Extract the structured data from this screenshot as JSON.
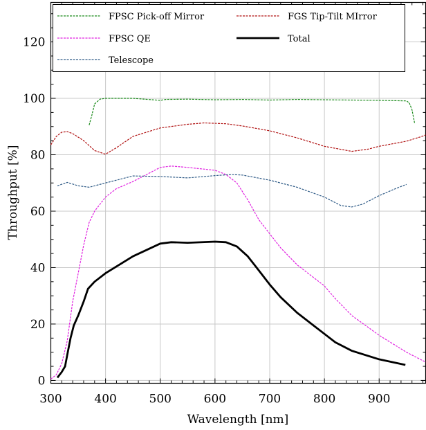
{
  "chart_data": {
    "type": "line",
    "xlabel": "Wavelength [nm]",
    "ylabel": "Throughput [%]",
    "xlim": [
      300,
      985
    ],
    "ylim": [
      -1,
      134
    ],
    "grid": true,
    "legend_placement": "top",
    "xticks": [
      300,
      400,
      500,
      600,
      700,
      800,
      900
    ],
    "yticks": [
      0,
      20,
      40,
      60,
      80,
      100,
      120
    ],
    "series": [
      {
        "name": "FPSC Pick-off Mirror",
        "color": "#1a8a1a",
        "style": "dashed",
        "points": [
          [
            370,
            90.5
          ],
          [
            375,
            94
          ],
          [
            380,
            98
          ],
          [
            390,
            99.7
          ],
          [
            400,
            100
          ],
          [
            450,
            100
          ],
          [
            500,
            99.3
          ],
          [
            510,
            99.6
          ],
          [
            550,
            99.7
          ],
          [
            600,
            99.5
          ],
          [
            650,
            99.6
          ],
          [
            700,
            99.4
          ],
          [
            750,
            99.6
          ],
          [
            800,
            99.5
          ],
          [
            850,
            99.4
          ],
          [
            900,
            99.3
          ],
          [
            950,
            99.1
          ],
          [
            955,
            98.4
          ],
          [
            960,
            96
          ],
          [
            965,
            91
          ]
        ]
      },
      {
        "name": "FGS Tip-Tilt MIrror",
        "color": "#b01010",
        "style": "dashed",
        "points": [
          [
            300,
            83.5
          ],
          [
            310,
            86.5
          ],
          [
            320,
            88
          ],
          [
            330,
            88.2
          ],
          [
            340,
            87.5
          ],
          [
            360,
            85
          ],
          [
            380,
            81.5
          ],
          [
            400,
            80.2
          ],
          [
            420,
            82.5
          ],
          [
            450,
            86.5
          ],
          [
            500,
            89.5
          ],
          [
            550,
            90.8
          ],
          [
            580,
            91.3
          ],
          [
            620,
            91
          ],
          [
            650,
            90.2
          ],
          [
            700,
            88.5
          ],
          [
            750,
            86
          ],
          [
            800,
            83
          ],
          [
            850,
            81.2
          ],
          [
            880,
            82
          ],
          [
            900,
            83
          ],
          [
            950,
            84.8
          ],
          [
            975,
            86.3
          ],
          [
            985,
            87
          ]
        ]
      },
      {
        "name": "FPSC QE",
        "color": "#e020e0",
        "style": "dashed",
        "points": [
          [
            300,
            0.5
          ],
          [
            310,
            2
          ],
          [
            320,
            6
          ],
          [
            330,
            14
          ],
          [
            340,
            28
          ],
          [
            350,
            38
          ],
          [
            360,
            48
          ],
          [
            370,
            56
          ],
          [
            380,
            60
          ],
          [
            400,
            65
          ],
          [
            420,
            68
          ],
          [
            450,
            70.5
          ],
          [
            480,
            73.5
          ],
          [
            500,
            75.5
          ],
          [
            520,
            76
          ],
          [
            550,
            75.5
          ],
          [
            600,
            74.5
          ],
          [
            620,
            73
          ],
          [
            640,
            70
          ],
          [
            660,
            64
          ],
          [
            680,
            57
          ],
          [
            700,
            52
          ],
          [
            720,
            47
          ],
          [
            750,
            41
          ],
          [
            780,
            36.5
          ],
          [
            800,
            33.5
          ],
          [
            820,
            29
          ],
          [
            850,
            23
          ],
          [
            900,
            16
          ],
          [
            950,
            10
          ],
          [
            985,
            6.5
          ]
        ]
      },
      {
        "name": "Total",
        "color": "#000000",
        "style": "solid",
        "points": [
          [
            312,
            1
          ],
          [
            320,
            3
          ],
          [
            326,
            5
          ],
          [
            330,
            9
          ],
          [
            336,
            15
          ],
          [
            342,
            19.5
          ],
          [
            350,
            23
          ],
          [
            360,
            28
          ],
          [
            368,
            32.5
          ],
          [
            380,
            35
          ],
          [
            400,
            38
          ],
          [
            450,
            44
          ],
          [
            500,
            48.5
          ],
          [
            520,
            49
          ],
          [
            550,
            48.8
          ],
          [
            600,
            49.2
          ],
          [
            620,
            49
          ],
          [
            640,
            47.5
          ],
          [
            660,
            44
          ],
          [
            680,
            39
          ],
          [
            700,
            34
          ],
          [
            720,
            29.5
          ],
          [
            750,
            24
          ],
          [
            780,
            19.5
          ],
          [
            800,
            16.5
          ],
          [
            820,
            13.5
          ],
          [
            850,
            10.5
          ],
          [
            900,
            7.5
          ],
          [
            948,
            5.5
          ]
        ]
      },
      {
        "name": "Telescope",
        "color": "#2e5a86",
        "style": "dashed",
        "points": [
          [
            312,
            69
          ],
          [
            330,
            70.2
          ],
          [
            350,
            69
          ],
          [
            370,
            68.5
          ],
          [
            400,
            70
          ],
          [
            450,
            72.5
          ],
          [
            500,
            72.3
          ],
          [
            550,
            71.8
          ],
          [
            600,
            72.6
          ],
          [
            630,
            73
          ],
          [
            650,
            72.8
          ],
          [
            700,
            71
          ],
          [
            750,
            68.5
          ],
          [
            800,
            65
          ],
          [
            830,
            62
          ],
          [
            850,
            61.5
          ],
          [
            870,
            62.5
          ],
          [
            900,
            65.5
          ],
          [
            930,
            68
          ],
          [
            950,
            69.5
          ]
        ]
      }
    ]
  }
}
